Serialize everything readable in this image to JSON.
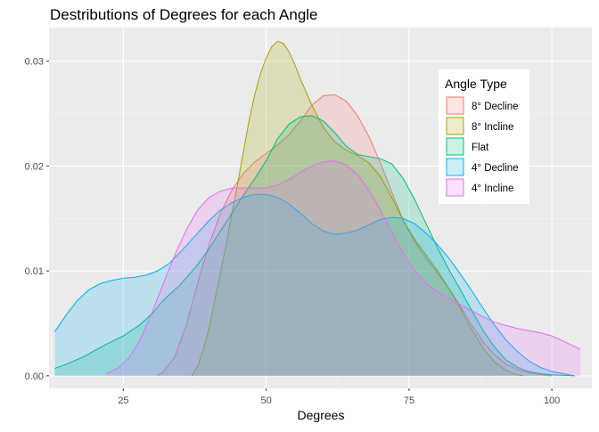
{
  "chart_data": {
    "type": "area",
    "title": "Destributions of Degrees for each Angle",
    "xlabel": "Degrees",
    "ylabel": "",
    "xlim": [
      12,
      107
    ],
    "ylim": [
      -0.0012,
      0.0332
    ],
    "x_ticks": [
      25,
      50,
      75,
      100
    ],
    "y_ticks": [
      0.0,
      0.01,
      0.02,
      0.03
    ],
    "y_tick_labels": [
      "0.00",
      "0.01",
      "0.02",
      "0.03"
    ],
    "grid": true,
    "legend_position": "top-right",
    "legend_title": "Angle Type",
    "series": [
      {
        "name": "8° Decline",
        "color": "#F8766D",
        "points": [
          [
            31,
            0
          ],
          [
            32,
            0.0004
          ],
          [
            34,
            0.0018
          ],
          [
            36,
            0.0048
          ],
          [
            38,
            0.0088
          ],
          [
            40,
            0.0125
          ],
          [
            42,
            0.0155
          ],
          [
            44,
            0.0177
          ],
          [
            46,
            0.0193
          ],
          [
            48,
            0.0204
          ],
          [
            50,
            0.0212
          ],
          [
            52,
            0.022
          ],
          [
            54,
            0.023
          ],
          [
            56,
            0.0243
          ],
          [
            58,
            0.0258
          ],
          [
            60,
            0.0267
          ],
          [
            62,
            0.0268
          ],
          [
            64,
            0.0262
          ],
          [
            66,
            0.0248
          ],
          [
            68,
            0.0228
          ],
          [
            70,
            0.0203
          ],
          [
            72,
            0.0175
          ],
          [
            74,
            0.0148
          ],
          [
            76,
            0.0128
          ],
          [
            78,
            0.0112
          ],
          [
            80,
            0.0098
          ],
          [
            82,
            0.0083
          ],
          [
            84,
            0.0066
          ],
          [
            86,
            0.0048
          ],
          [
            88,
            0.0032
          ],
          [
            90,
            0.002
          ],
          [
            92,
            0.0011
          ],
          [
            94,
            0.0006
          ],
          [
            96,
            0.0003
          ],
          [
            98,
            0.0001
          ],
          [
            100,
            0
          ]
        ]
      },
      {
        "name": "8° Incline",
        "color": "#A3A500",
        "points": [
          [
            37,
            0
          ],
          [
            38,
            0.0009
          ],
          [
            39,
            0.0025
          ],
          [
            40,
            0.0045
          ],
          [
            41,
            0.0072
          ],
          [
            42,
            0.0098
          ],
          [
            43,
            0.0125
          ],
          [
            44,
            0.0155
          ],
          [
            45,
            0.0183
          ],
          [
            46,
            0.0213
          ],
          [
            47,
            0.0243
          ],
          [
            48,
            0.0268
          ],
          [
            49,
            0.0288
          ],
          [
            50,
            0.0303
          ],
          [
            51,
            0.0314
          ],
          [
            52,
            0.0319
          ],
          [
            53,
            0.0317
          ],
          [
            54,
            0.0309
          ],
          [
            55,
            0.0297
          ],
          [
            56,
            0.0283
          ],
          [
            58,
            0.0258
          ],
          [
            60,
            0.0237
          ],
          [
            62,
            0.0223
          ],
          [
            64,
            0.0215
          ],
          [
            66,
            0.021
          ],
          [
            68,
            0.0203
          ],
          [
            70,
            0.019
          ],
          [
            72,
            0.017
          ],
          [
            74,
            0.0148
          ],
          [
            76,
            0.013
          ],
          [
            78,
            0.0115
          ],
          [
            80,
            0.01
          ],
          [
            82,
            0.0083
          ],
          [
            84,
            0.0064
          ],
          [
            86,
            0.0044
          ],
          [
            88,
            0.0026
          ],
          [
            90,
            0.0013
          ],
          [
            92,
            0.0005
          ],
          [
            94,
            0.0001
          ],
          [
            95,
            0
          ]
        ]
      },
      {
        "name": "Flat",
        "color": "#00BF7D",
        "points": [
          [
            13,
            0.0007
          ],
          [
            15,
            0.0011
          ],
          [
            18,
            0.0018
          ],
          [
            20,
            0.0024
          ],
          [
            22,
            0.003
          ],
          [
            25,
            0.0038
          ],
          [
            28,
            0.0049
          ],
          [
            30,
            0.0059
          ],
          [
            32,
            0.0072
          ],
          [
            35,
            0.0087
          ],
          [
            38,
            0.0106
          ],
          [
            40,
            0.0121
          ],
          [
            42,
            0.0138
          ],
          [
            44,
            0.0155
          ],
          [
            46,
            0.0172
          ],
          [
            48,
            0.0188
          ],
          [
            50,
            0.0205
          ],
          [
            52,
            0.0226
          ],
          [
            54,
            0.024
          ],
          [
            56,
            0.0247
          ],
          [
            58,
            0.0248
          ],
          [
            60,
            0.0243
          ],
          [
            62,
            0.0232
          ],
          [
            64,
            0.0219
          ],
          [
            66,
            0.0211
          ],
          [
            68,
            0.0209
          ],
          [
            70,
            0.0207
          ],
          [
            72,
            0.0202
          ],
          [
            74,
            0.0188
          ],
          [
            76,
            0.0168
          ],
          [
            78,
            0.0145
          ],
          [
            80,
            0.0122
          ],
          [
            82,
            0.0101
          ],
          [
            84,
            0.0082
          ],
          [
            86,
            0.0062
          ],
          [
            88,
            0.0043
          ],
          [
            90,
            0.0027
          ],
          [
            92,
            0.0015
          ],
          [
            94,
            0.0008
          ],
          [
            96,
            0.0004
          ],
          [
            98,
            0.0002
          ],
          [
            100,
            0.0001
          ],
          [
            104,
            0
          ]
        ]
      },
      {
        "name": "4° Decline",
        "color": "#00B0F6",
        "points": [
          [
            13,
            0.0042
          ],
          [
            15,
            0.0058
          ],
          [
            17,
            0.0072
          ],
          [
            19,
            0.0082
          ],
          [
            21,
            0.0088
          ],
          [
            23,
            0.0091
          ],
          [
            25,
            0.0093
          ],
          [
            27,
            0.0094
          ],
          [
            29,
            0.0096
          ],
          [
            31,
            0.01
          ],
          [
            33,
            0.0107
          ],
          [
            35,
            0.0118
          ],
          [
            37,
            0.013
          ],
          [
            40,
            0.0148
          ],
          [
            42,
            0.0158
          ],
          [
            44,
            0.0165
          ],
          [
            46,
            0.017
          ],
          [
            48,
            0.0173
          ],
          [
            50,
            0.0173
          ],
          [
            52,
            0.017
          ],
          [
            54,
            0.0164
          ],
          [
            56,
            0.0155
          ],
          [
            58,
            0.0145
          ],
          [
            60,
            0.0138
          ],
          [
            62,
            0.0135
          ],
          [
            64,
            0.0136
          ],
          [
            66,
            0.0139
          ],
          [
            68,
            0.0144
          ],
          [
            70,
            0.0149
          ],
          [
            72,
            0.0151
          ],
          [
            74,
            0.015
          ],
          [
            76,
            0.0145
          ],
          [
            78,
            0.0136
          ],
          [
            80,
            0.0125
          ],
          [
            82,
            0.0112
          ],
          [
            84,
            0.0097
          ],
          [
            86,
            0.0081
          ],
          [
            88,
            0.0064
          ],
          [
            90,
            0.0048
          ],
          [
            92,
            0.0034
          ],
          [
            94,
            0.0023
          ],
          [
            96,
            0.0014
          ],
          [
            98,
            0.0008
          ],
          [
            100,
            0.0004
          ],
          [
            102,
            0.0002
          ],
          [
            104,
            0
          ]
        ]
      },
      {
        "name": "4° Incline",
        "color": "#E76BF3",
        "points": [
          [
            22,
            0.0002
          ],
          [
            24,
            0.0007
          ],
          [
            26,
            0.0017
          ],
          [
            28,
            0.0035
          ],
          [
            30,
            0.006
          ],
          [
            32,
            0.0088
          ],
          [
            34,
            0.0115
          ],
          [
            36,
            0.0139
          ],
          [
            38,
            0.0158
          ],
          [
            40,
            0.017
          ],
          [
            42,
            0.0176
          ],
          [
            44,
            0.0179
          ],
          [
            46,
            0.0179
          ],
          [
            48,
            0.0179
          ],
          [
            50,
            0.0179
          ],
          [
            52,
            0.0182
          ],
          [
            54,
            0.0187
          ],
          [
            56,
            0.0194
          ],
          [
            58,
            0.02
          ],
          [
            60,
            0.0204
          ],
          [
            62,
            0.0205
          ],
          [
            64,
            0.0201
          ],
          [
            66,
            0.0192
          ],
          [
            68,
            0.0177
          ],
          [
            70,
            0.0158
          ],
          [
            72,
            0.0137
          ],
          [
            74,
            0.0117
          ],
          [
            76,
            0.01
          ],
          [
            78,
            0.0088
          ],
          [
            80,
            0.008
          ],
          [
            82,
            0.0074
          ],
          [
            84,
            0.0068
          ],
          [
            86,
            0.0062
          ],
          [
            88,
            0.0056
          ],
          [
            90,
            0.0051
          ],
          [
            92,
            0.0048
          ],
          [
            94,
            0.0045
          ],
          [
            96,
            0.0043
          ],
          [
            98,
            0.0041
          ],
          [
            100,
            0.0038
          ],
          [
            102,
            0.0033
          ],
          [
            104,
            0.0028
          ],
          [
            105,
            0.0025
          ]
        ]
      }
    ]
  }
}
